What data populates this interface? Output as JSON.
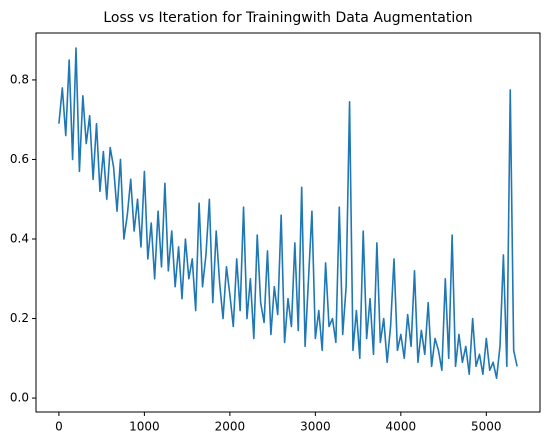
{
  "chart_data": {
    "type": "line",
    "title": "Loss vs Iteration for Trainingwith Data Augmentation",
    "color": "#1f77b4",
    "x": [
      0,
      40,
      80,
      120,
      160,
      200,
      240,
      280,
      320,
      360,
      400,
      440,
      480,
      520,
      560,
      600,
      640,
      680,
      720,
      760,
      800,
      840,
      880,
      920,
      960,
      1000,
      1040,
      1080,
      1120,
      1160,
      1200,
      1240,
      1280,
      1320,
      1360,
      1400,
      1440,
      1480,
      1520,
      1560,
      1600,
      1640,
      1680,
      1720,
      1760,
      1800,
      1840,
      1880,
      1920,
      1960,
      2000,
      2040,
      2080,
      2120,
      2160,
      2200,
      2240,
      2280,
      2320,
      2360,
      2400,
      2440,
      2480,
      2520,
      2560,
      2600,
      2640,
      2680,
      2720,
      2760,
      2800,
      2840,
      2880,
      2920,
      2960,
      3000,
      3040,
      3080,
      3120,
      3160,
      3200,
      3240,
      3280,
      3320,
      3360,
      3400,
      3440,
      3480,
      3520,
      3560,
      3600,
      3640,
      3680,
      3720,
      3760,
      3800,
      3840,
      3880,
      3920,
      3960,
      4000,
      4040,
      4080,
      4120,
      4160,
      4200,
      4240,
      4280,
      4320,
      4360,
      4400,
      4440,
      4480,
      4520,
      4560,
      4600,
      4640,
      4680,
      4720,
      4760,
      4800,
      4840,
      4880,
      4920,
      4960,
      5000,
      5040,
      5080,
      5120,
      5160,
      5200,
      5240,
      5280,
      5320,
      5360
    ],
    "values": [
      0.69,
      0.78,
      0.66,
      0.85,
      0.6,
      0.88,
      0.57,
      0.76,
      0.64,
      0.71,
      0.55,
      0.69,
      0.52,
      0.62,
      0.5,
      0.63,
      0.58,
      0.47,
      0.6,
      0.4,
      0.46,
      0.55,
      0.42,
      0.5,
      0.38,
      0.57,
      0.35,
      0.44,
      0.3,
      0.47,
      0.33,
      0.54,
      0.32,
      0.42,
      0.28,
      0.38,
      0.25,
      0.4,
      0.3,
      0.35,
      0.22,
      0.49,
      0.28,
      0.36,
      0.5,
      0.24,
      0.42,
      0.29,
      0.2,
      0.33,
      0.26,
      0.18,
      0.35,
      0.22,
      0.48,
      0.2,
      0.3,
      0.15,
      0.41,
      0.24,
      0.19,
      0.37,
      0.16,
      0.28,
      0.21,
      0.46,
      0.14,
      0.25,
      0.18,
      0.39,
      0.17,
      0.53,
      0.13,
      0.3,
      0.47,
      0.15,
      0.22,
      0.12,
      0.34,
      0.18,
      0.2,
      0.14,
      0.48,
      0.16,
      0.28,
      0.745,
      0.12,
      0.22,
      0.1,
      0.42,
      0.15,
      0.25,
      0.11,
      0.39,
      0.14,
      0.2,
      0.09,
      0.18,
      0.35,
      0.12,
      0.16,
      0.1,
      0.21,
      0.13,
      0.32,
      0.09,
      0.17,
      0.11,
      0.24,
      0.08,
      0.15,
      0.12,
      0.07,
      0.3,
      0.1,
      0.41,
      0.08,
      0.16,
      0.09,
      0.13,
      0.06,
      0.2,
      0.08,
      0.11,
      0.06,
      0.15,
      0.07,
      0.09,
      0.05,
      0.13,
      0.36,
      0.08,
      0.775,
      0.12,
      0.08
    ],
    "xlim": [
      -268,
      5628
    ],
    "xticks": [
      0,
      1000,
      2000,
      3000,
      4000,
      5000
    ],
    "ylim": [
      -0.035,
      0.918
    ],
    "yticks": [
      {
        "value": 0,
        "label": "0.0"
      },
      0.2,
      0.4,
      0.6,
      0.8
    ]
  }
}
